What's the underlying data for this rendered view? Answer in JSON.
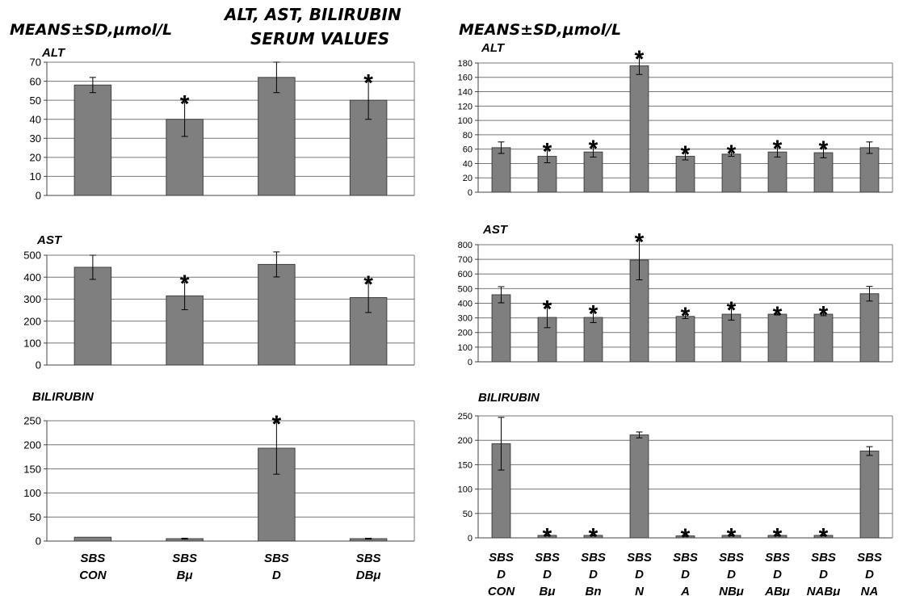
{
  "header": {
    "title_line1": "ALT, AST, BILIRUBIN",
    "title_line2": "SERUM VALUES",
    "units_left": "MEANS±SD,μmol/L",
    "units_right": "MEANS±SD,μmol/L"
  },
  "colors": {
    "bar": "#7f7f7f",
    "grid": "#777777",
    "axis": "#444444",
    "text": "#000000"
  },
  "chart_data": [
    {
      "type": "bar",
      "title": "ALT",
      "categories": [
        "SBS CON",
        "SBS Bμ",
        "SBS D",
        "SBS DBμ"
      ],
      "ylim": [
        0,
        70
      ],
      "yticks": [
        0,
        10,
        20,
        30,
        40,
        50,
        60,
        70
      ],
      "values": [
        58,
        40,
        62,
        50
      ],
      "errors": [
        4,
        9,
        8,
        10
      ],
      "significant": [
        false,
        true,
        false,
        true
      ],
      "grid": true
    },
    {
      "type": "bar",
      "title": "AST",
      "categories": [
        "SBS CON",
        "SBS Bμ",
        "SBS D",
        "SBS DBμ"
      ],
      "ylim": [
        0,
        500
      ],
      "yticks": [
        0,
        100,
        200,
        300,
        400,
        500
      ],
      "values": [
        445,
        315,
        458,
        307
      ],
      "errors": [
        55,
        63,
        57,
        68
      ],
      "significant": [
        false,
        true,
        false,
        true
      ],
      "grid": true
    },
    {
      "type": "bar",
      "title": "BILIRUBIN",
      "categories": [
        "SBS CON",
        "SBS Bμ",
        "SBS D",
        "SBS DBμ"
      ],
      "x_labels": [
        [
          "SBS",
          "CON"
        ],
        [
          "SBS",
          "Bμ"
        ],
        [
          "SBS",
          "D"
        ],
        [
          "SBS",
          "DBμ"
        ]
      ],
      "ylim": [
        0,
        250
      ],
      "yticks": [
        0,
        50,
        100,
        150,
        200,
        250
      ],
      "values": [
        8,
        5,
        193,
        5
      ],
      "errors": [
        0,
        1,
        54,
        1
      ],
      "significant": [
        false,
        false,
        true,
        false
      ],
      "grid": true
    },
    {
      "type": "bar",
      "title": "ALT",
      "categories": [
        "SBS D CON",
        "SBS D Bμ",
        "SBS D Bn",
        "SBS D N",
        "SBS D A",
        "SBS D NBμ",
        "SBS D ABμ",
        "SBS D NABμ",
        "SBS D NA"
      ],
      "ylim": [
        0,
        180
      ],
      "yticks": [
        0,
        20,
        40,
        60,
        80,
        100,
        120,
        140,
        160,
        180
      ],
      "values": [
        62,
        50,
        56,
        176,
        50,
        53,
        56,
        55,
        62
      ],
      "errors": [
        8,
        9,
        7,
        12,
        5,
        3,
        7,
        7,
        8
      ],
      "significant": [
        false,
        true,
        true,
        true,
        true,
        true,
        true,
        true,
        false
      ],
      "grid": true
    },
    {
      "type": "bar",
      "title": "AST",
      "categories": [
        "SBS D CON",
        "SBS D Bμ",
        "SBS D Bn",
        "SBS D N",
        "SBS D A",
        "SBS D NBμ",
        "SBS D ABμ",
        "SBS D NABμ",
        "SBS D NA"
      ],
      "ylim": [
        0,
        800
      ],
      "yticks": [
        0,
        100,
        200,
        300,
        400,
        500,
        600,
        700,
        800
      ],
      "values": [
        458,
        303,
        303,
        695,
        310,
        325,
        325,
        325,
        465
      ],
      "errors": [
        55,
        70,
        35,
        135,
        15,
        40,
        5,
        10,
        50
      ],
      "significant": [
        false,
        true,
        true,
        true,
        true,
        true,
        true,
        true,
        false
      ],
      "grid": true
    },
    {
      "type": "bar",
      "title": "BILIRUBIN",
      "categories": [
        "SBS D CON",
        "SBS D Bμ",
        "SBS D Bn",
        "SBS D N",
        "SBS D A",
        "SBS D NBμ",
        "SBS D ABμ",
        "SBS D NABμ",
        "SBS D NA"
      ],
      "x_labels": [
        [
          "SBS",
          "D",
          "CON"
        ],
        [
          "SBS",
          "D",
          "Bμ"
        ],
        [
          "SBS",
          "D",
          "Bn"
        ],
        [
          "SBS",
          "D",
          "N"
        ],
        [
          "SBS",
          "D",
          "A"
        ],
        [
          "SBS",
          "D",
          "NBμ"
        ],
        [
          "SBS",
          "D",
          "ABμ"
        ],
        [
          "SBS",
          "D",
          "NABμ"
        ],
        [
          "SBS",
          "D",
          "NA"
        ]
      ],
      "ylim": [
        0,
        250
      ],
      "yticks": [
        0,
        50,
        100,
        150,
        200,
        250
      ],
      "values": [
        193,
        5,
        5,
        211,
        4,
        5,
        5,
        5,
        178
      ],
      "errors": [
        54,
        1,
        1,
        6,
        1,
        1,
        1,
        1,
        9
      ],
      "significant": [
        false,
        true,
        true,
        false,
        true,
        true,
        true,
        true,
        false
      ],
      "grid": true
    }
  ]
}
